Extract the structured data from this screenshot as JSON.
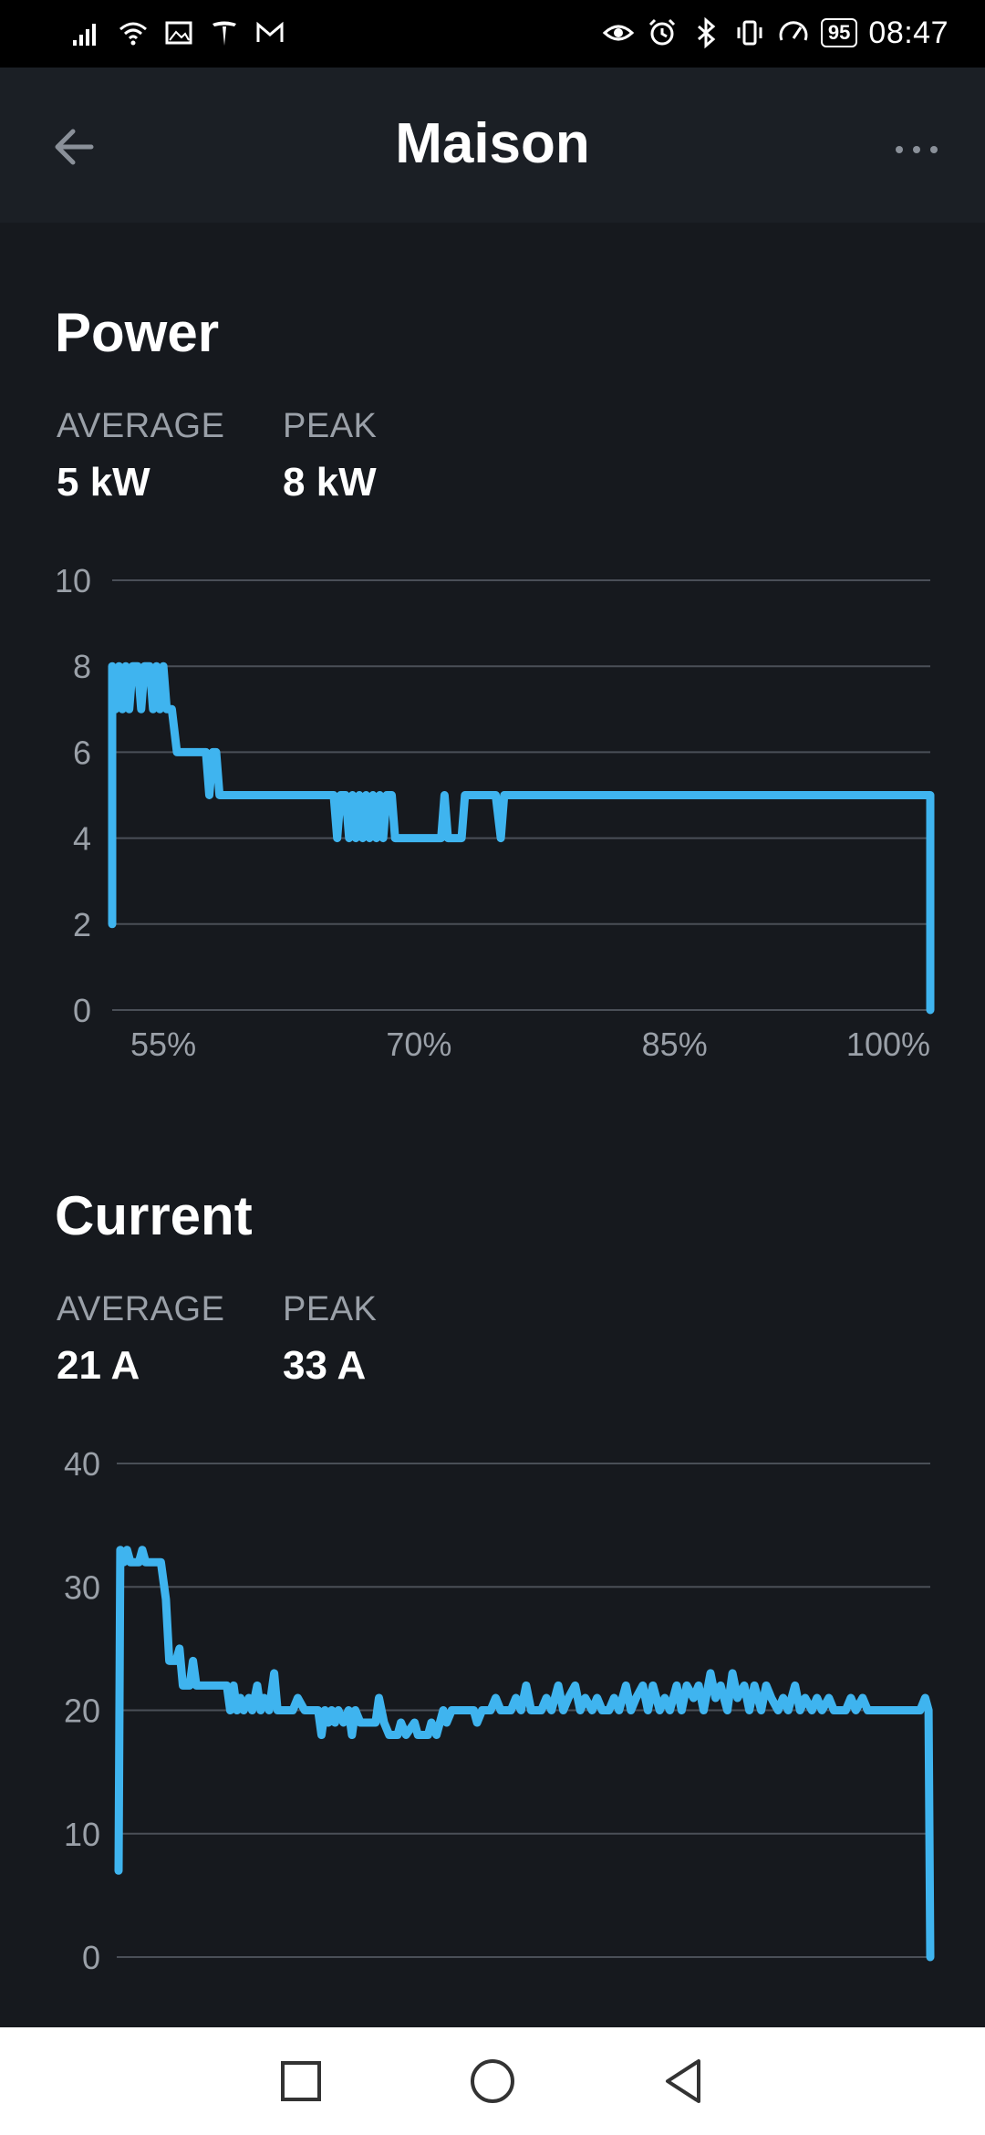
{
  "status_bar": {
    "battery": "95",
    "time": "08:47"
  },
  "app_bar": {
    "title": "Maison"
  },
  "power": {
    "title": "Power",
    "average_label": "AVERAGE",
    "average_value": "5 kW",
    "peak_label": "PEAK",
    "peak_value": "8 kW"
  },
  "current": {
    "title": "Current",
    "average_label": "AVERAGE",
    "average_value": "21 A",
    "peak_label": "PEAK",
    "peak_value": "33 A"
  },
  "colors": {
    "background": "#16191e",
    "series": "#3fb4ef",
    "grid": "#4a4f57",
    "muted_text": "#9aa0a8"
  },
  "chart_data": [
    {
      "type": "line",
      "title": "Power",
      "xlabel": "",
      "ylabel": "",
      "ylim": [
        0,
        10
      ],
      "xlim": [
        52,
        100
      ],
      "y_ticks": [
        "0",
        "2",
        "4",
        "6",
        "8",
        "10"
      ],
      "x_ticks": [
        {
          "value": 55,
          "label": "55%"
        },
        {
          "value": 70,
          "label": "70%"
        },
        {
          "value": 85,
          "label": "85%"
        },
        {
          "value": 100,
          "label": "100%"
        }
      ],
      "grid": true,
      "series": [
        {
          "values": [
            [
              52.0,
              2
            ],
            [
              52.0,
              8
            ],
            [
              52.2,
              7
            ],
            [
              52.4,
              8
            ],
            [
              52.6,
              7
            ],
            [
              52.8,
              8
            ],
            [
              53.0,
              7
            ],
            [
              53.2,
              8
            ],
            [
              53.5,
              8
            ],
            [
              53.7,
              7
            ],
            [
              53.9,
              8
            ],
            [
              54.2,
              8
            ],
            [
              54.4,
              7
            ],
            [
              54.6,
              8
            ],
            [
              54.8,
              7
            ],
            [
              55.0,
              8
            ],
            [
              55.2,
              7
            ],
            [
              55.5,
              7
            ],
            [
              55.8,
              6
            ],
            [
              57.5,
              6
            ],
            [
              57.7,
              5
            ],
            [
              57.9,
              6
            ],
            [
              58.1,
              6
            ],
            [
              58.3,
              5
            ],
            [
              65.0,
              5
            ],
            [
              65.2,
              4
            ],
            [
              65.4,
              5
            ],
            [
              65.7,
              5
            ],
            [
              65.9,
              4
            ],
            [
              66.1,
              5
            ],
            [
              66.3,
              4
            ],
            [
              66.5,
              5
            ],
            [
              66.7,
              4
            ],
            [
              66.9,
              5
            ],
            [
              67.1,
              4
            ],
            [
              67.3,
              5
            ],
            [
              67.5,
              4
            ],
            [
              67.7,
              5
            ],
            [
              67.9,
              4
            ],
            [
              68.1,
              5
            ],
            [
              68.4,
              5
            ],
            [
              68.6,
              4
            ],
            [
              71.3,
              4
            ],
            [
              71.5,
              5
            ],
            [
              71.7,
              4
            ],
            [
              72.5,
              4
            ],
            [
              72.7,
              5
            ],
            [
              74.5,
              5
            ],
            [
              74.8,
              4
            ],
            [
              75.0,
              5
            ],
            [
              100.0,
              5
            ],
            [
              100.0,
              0
            ]
          ]
        }
      ]
    },
    {
      "type": "line",
      "title": "Current",
      "xlabel": "",
      "ylabel": "",
      "ylim": [
        0,
        40
      ],
      "xlim": [
        52,
        100
      ],
      "y_ticks": [
        "0",
        "10",
        "20",
        "30",
        "40"
      ],
      "grid": true,
      "series": [
        {
          "values": [
            [
              52.0,
              7
            ],
            [
              52.1,
              33
            ],
            [
              52.3,
              32
            ],
            [
              52.5,
              33
            ],
            [
              52.7,
              32
            ],
            [
              53.2,
              32
            ],
            [
              53.4,
              33
            ],
            [
              53.6,
              32
            ],
            [
              54.5,
              32
            ],
            [
              54.8,
              29
            ],
            [
              55.0,
              24
            ],
            [
              55.4,
              24
            ],
            [
              55.6,
              25
            ],
            [
              55.8,
              22
            ],
            [
              56.2,
              22
            ],
            [
              56.4,
              24
            ],
            [
              56.6,
              22
            ],
            [
              58.4,
              22
            ],
            [
              58.6,
              20
            ],
            [
              58.8,
              22
            ],
            [
              59.0,
              20
            ],
            [
              59.2,
              21
            ],
            [
              59.4,
              20
            ],
            [
              59.7,
              21
            ],
            [
              59.9,
              20
            ],
            [
              60.2,
              22
            ],
            [
              60.4,
              20
            ],
            [
              60.6,
              21
            ],
            [
              60.9,
              20
            ],
            [
              61.2,
              23
            ],
            [
              61.4,
              20
            ],
            [
              62.0,
              20
            ],
            [
              62.3,
              20
            ],
            [
              62.6,
              21
            ],
            [
              63.0,
              20
            ],
            [
              63.8,
              20
            ],
            [
              64.0,
              18
            ],
            [
              64.2,
              20
            ],
            [
              64.4,
              19
            ],
            [
              64.6,
              20
            ],
            [
              64.8,
              19
            ],
            [
              65.0,
              20
            ],
            [
              65.3,
              19
            ],
            [
              65.6,
              20
            ],
            [
              65.8,
              18
            ],
            [
              66.0,
              20
            ],
            [
              66.3,
              19
            ],
            [
              66.6,
              19
            ],
            [
              66.9,
              19
            ],
            [
              67.2,
              19
            ],
            [
              67.4,
              21
            ],
            [
              67.7,
              19
            ],
            [
              68.0,
              18
            ],
            [
              68.5,
              18
            ],
            [
              68.7,
              19
            ],
            [
              69.0,
              18
            ],
            [
              69.5,
              19
            ],
            [
              69.7,
              18
            ],
            [
              70.3,
              18
            ],
            [
              70.5,
              19
            ],
            [
              70.8,
              18
            ],
            [
              71.2,
              20
            ],
            [
              71.4,
              19
            ],
            [
              71.7,
              20
            ],
            [
              73.0,
              20
            ],
            [
              73.2,
              19
            ],
            [
              73.5,
              20
            ],
            [
              74.0,
              20
            ],
            [
              74.3,
              21
            ],
            [
              74.6,
              20
            ],
            [
              75.2,
              20
            ],
            [
              75.5,
              21
            ],
            [
              75.8,
              20
            ],
            [
              76.1,
              22
            ],
            [
              76.4,
              20
            ],
            [
              77.0,
              20
            ],
            [
              77.3,
              21
            ],
            [
              77.6,
              20
            ],
            [
              78.0,
              22
            ],
            [
              78.3,
              20
            ],
            [
              78.6,
              21
            ],
            [
              79.0,
              22
            ],
            [
              79.3,
              20
            ],
            [
              79.6,
              21
            ],
            [
              80.0,
              20
            ],
            [
              80.3,
              21
            ],
            [
              80.6,
              20
            ],
            [
              81.0,
              20
            ],
            [
              81.3,
              21
            ],
            [
              81.6,
              20
            ],
            [
              82.0,
              22
            ],
            [
              82.3,
              20
            ],
            [
              82.6,
              21
            ],
            [
              83.0,
              22
            ],
            [
              83.3,
              20
            ],
            [
              83.6,
              22
            ],
            [
              84.0,
              20
            ],
            [
              84.3,
              21
            ],
            [
              84.6,
              20
            ],
            [
              85.0,
              22
            ],
            [
              85.3,
              20
            ],
            [
              85.6,
              22
            ],
            [
              86.0,
              21
            ],
            [
              86.3,
              22
            ],
            [
              86.6,
              20
            ],
            [
              87.0,
              23
            ],
            [
              87.3,
              21
            ],
            [
              87.6,
              22
            ],
            [
              88.0,
              20
            ],
            [
              88.3,
              23
            ],
            [
              88.6,
              21
            ],
            [
              89.0,
              22
            ],
            [
              89.3,
              20
            ],
            [
              89.6,
              22
            ],
            [
              90.0,
              20
            ],
            [
              90.3,
              22
            ],
            [
              90.6,
              21
            ],
            [
              91.0,
              20
            ],
            [
              91.3,
              21
            ],
            [
              91.6,
              20
            ],
            [
              92.0,
              22
            ],
            [
              92.3,
              20
            ],
            [
              92.6,
              21
            ],
            [
              93.0,
              20
            ],
            [
              93.3,
              21
            ],
            [
              93.6,
              20
            ],
            [
              94.0,
              21
            ],
            [
              94.3,
              20
            ],
            [
              95.0,
              20
            ],
            [
              95.3,
              21
            ],
            [
              95.6,
              20
            ],
            [
              96.0,
              21
            ],
            [
              96.3,
              20
            ],
            [
              99.4,
              20
            ],
            [
              99.7,
              21
            ],
            [
              99.9,
              20
            ],
            [
              100.0,
              0
            ]
          ]
        }
      ]
    }
  ]
}
